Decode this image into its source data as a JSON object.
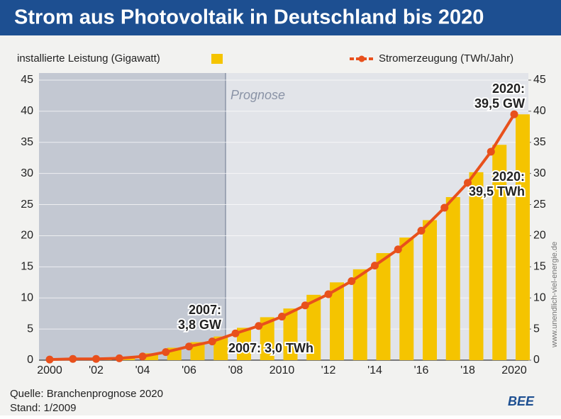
{
  "chart_data": {
    "type": "bar_line",
    "title": "Strom aus Photovoltaik in Deutschland bis 2020",
    "categories": [
      "2000",
      null,
      "'02",
      null,
      "'04",
      null,
      "'06",
      null,
      "'08",
      null,
      "2010",
      null,
      "'12",
      null,
      "'14",
      null,
      "'16",
      null,
      "'18",
      null,
      "2020"
    ],
    "series": [
      {
        "name": "installierte Leistung (Gigawatt)",
        "color": "#f5c400",
        "type": "bar",
        "values": [
          0.1,
          0.2,
          0.3,
          0.4,
          1.1,
          2.0,
          2.9,
          3.8,
          5.2,
          6.9,
          8.3,
          10.5,
          12.5,
          14.6,
          17.2,
          19.7,
          22.5,
          26.2,
          30.2,
          34.6,
          39.5
        ]
      },
      {
        "name": "Stromerzeugung (TWh/Jahr)",
        "color": "#e8501c",
        "type": "line",
        "axis": "y2",
        "values": [
          0.1,
          0.2,
          0.2,
          0.3,
          0.6,
          1.3,
          2.2,
          3.0,
          4.3,
          5.5,
          7.0,
          8.8,
          10.6,
          12.7,
          15.2,
          17.8,
          20.8,
          24.5,
          28.5,
          33.5,
          39.5
        ]
      }
    ],
    "ylim": [
      0,
      45
    ],
    "yticks": [
      0,
      5,
      10,
      15,
      20,
      25,
      30,
      35,
      40,
      45
    ],
    "y2lim": [
      0,
      45
    ],
    "y2ticks": [
      0,
      5,
      10,
      15,
      20,
      25,
      30,
      35,
      40,
      45
    ],
    "grid": true,
    "forecast_label": "Prognose",
    "annotations": [
      {
        "lines": [
          "2007:",
          "3,8 GW"
        ]
      },
      {
        "lines": [
          "2007: 3,0 TWh"
        ]
      },
      {
        "lines": [
          "2020:",
          "39,5 GW"
        ]
      },
      {
        "lines": [
          "2020:",
          "39,5 TWh"
        ]
      }
    ],
    "source": "Quelle: Branchenprognose 2020",
    "date": "Stand: 1/2009",
    "watermark": "www.unendlich-viel-energie.de",
    "logo": "BEE"
  }
}
